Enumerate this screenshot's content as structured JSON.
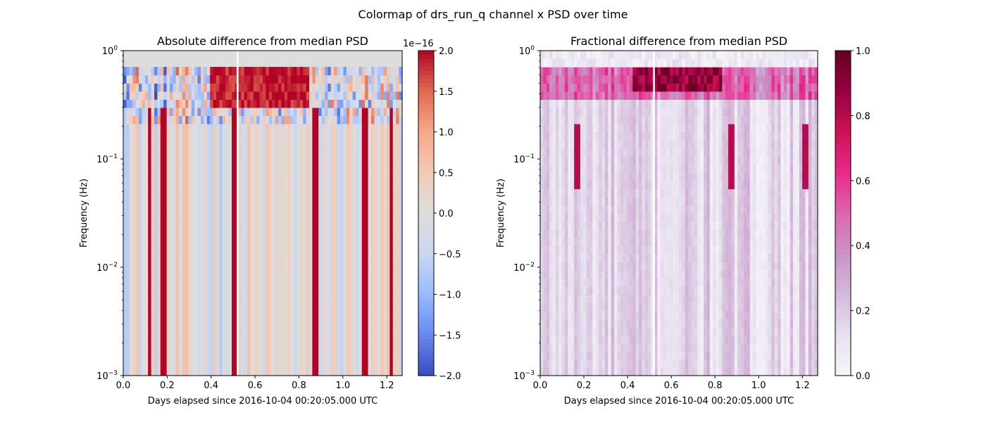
{
  "figure": {
    "suptitle": "Colormap of drs_run_q channel x PSD over time"
  },
  "chart_data": [
    {
      "type": "heatmap",
      "title": "Absolute difference from median PSD",
      "xlabel": "Days elapsed since 2016-10-04 00:20:05.000 UTC",
      "ylabel": "Frequency (Hz)",
      "xlim": [
        0.0,
        1.27
      ],
      "ylim": [
        0.001,
        1.0
      ],
      "yscale": "log",
      "x_ticks": [
        "0.0",
        "0.2",
        "0.4",
        "0.6",
        "0.8",
        "1.0",
        "1.2"
      ],
      "x_tick_values": [
        0.0,
        0.2,
        0.4,
        0.6,
        0.8,
        1.0,
        1.2
      ],
      "y_ticks": [
        {
          "base": "10",
          "exp": "−3",
          "value": 0.001
        },
        {
          "base": "10",
          "exp": "−2",
          "value": 0.01
        },
        {
          "base": "10",
          "exp": "−1",
          "value": 0.1
        },
        {
          "base": "10",
          "exp": "0",
          "value": 1
        }
      ],
      "gap_x": 0.52,
      "colormap": "coolwarm",
      "colorbar": {
        "range": [
          -2.0,
          2.0
        ],
        "offset_label": "1e−16",
        "ticks": [
          "2.0",
          "1.5",
          "1.0",
          "0.5",
          "0.0",
          "−0.5",
          "−1.0",
          "−1.5",
          "−2.0"
        ],
        "tick_values": [
          2.0,
          1.5,
          1.0,
          0.5,
          0.0,
          -0.5,
          -1.0,
          -1.5,
          -2.0
        ]
      },
      "columns_hint": {
        "n_time_bins": 90,
        "hot_band_days": [
          0.4,
          0.85
        ],
        "hot_band_freq_hz": [
          0.3,
          0.7
        ],
        "strong_streak_days": [
          0.12,
          0.18,
          0.51,
          0.87,
          1.1,
          1.22
        ]
      }
    },
    {
      "type": "heatmap",
      "title": "Fractional difference from median PSD",
      "xlabel": "Days elapsed since 2016-10-04 00:20:05.000 UTC",
      "ylabel": "Frequency (Hz)",
      "xlim": [
        0.0,
        1.27
      ],
      "ylim": [
        0.001,
        1.0
      ],
      "yscale": "log",
      "x_ticks": [
        "0.0",
        "0.2",
        "0.4",
        "0.6",
        "0.8",
        "1.0",
        "1.2"
      ],
      "x_tick_values": [
        0.0,
        0.2,
        0.4,
        0.6,
        0.8,
        1.0,
        1.2
      ],
      "y_ticks": [
        {
          "base": "10",
          "exp": "−3",
          "value": 0.001
        },
        {
          "base": "10",
          "exp": "−2",
          "value": 0.01
        },
        {
          "base": "10",
          "exp": "−1",
          "value": 0.1
        },
        {
          "base": "10",
          "exp": "0",
          "value": 1
        }
      ],
      "gap_x": 0.52,
      "colormap": "PuRd",
      "colorbar": {
        "range": [
          0.0,
          1.0
        ],
        "ticks": [
          "1.0",
          "0.8",
          "0.6",
          "0.4",
          "0.2",
          "0.0"
        ],
        "tick_values": [
          1.0,
          0.8,
          0.6,
          0.4,
          0.2,
          0.0
        ]
      },
      "columns_hint": {
        "n_time_bins": 90,
        "hot_band_days": [
          0.42,
          0.83
        ],
        "hot_band_freq_hz": [
          0.4,
          0.65
        ],
        "strong_streak_days": [
          0.17,
          0.87,
          1.21
        ]
      }
    }
  ],
  "colors": {
    "coolwarm_stops": [
      "#3b4cc0",
      "#6788ee",
      "#9abbff",
      "#c9d7f0",
      "#dddddd",
      "#f2cbb7",
      "#f7a889",
      "#e26952",
      "#b40426"
    ],
    "purd_stops": [
      "#f7f4f9",
      "#e7e1ef",
      "#d4b9da",
      "#c994c7",
      "#df65b0",
      "#e7298a",
      "#ce1256",
      "#980043",
      "#67001f"
    ],
    "background": "#dddddd"
  }
}
